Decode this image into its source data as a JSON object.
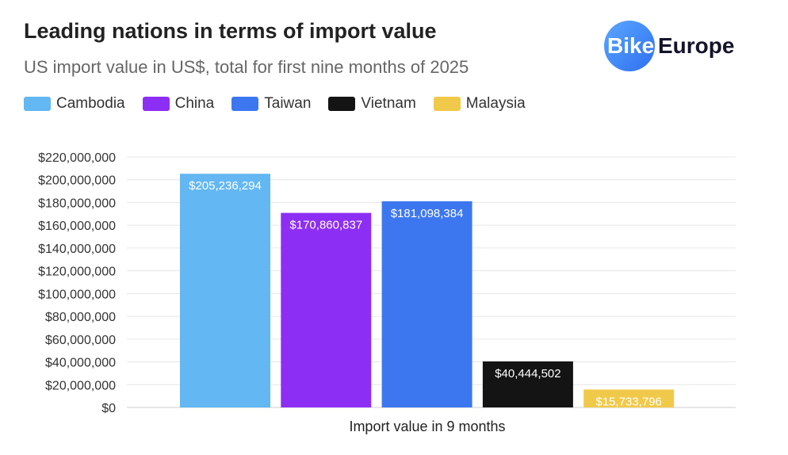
{
  "chart_data": {
    "type": "bar",
    "title": "Leading nations in terms of import value",
    "subtitle": "US import value in US$, total for first nine months of 2025",
    "xlabel": "Import value in 9 months",
    "ylabel": "",
    "ylim": [
      0,
      220000000
    ],
    "yticks": [
      "$0",
      "$20,000,000",
      "$40,000,000",
      "$60,000,000",
      "$80,000,000",
      "$100,000,000",
      "$120,000,000",
      "$140,000,000",
      "$160,000,000",
      "$180,000,000",
      "$200,000,000",
      "$220,000,000"
    ],
    "grid": true,
    "legend_position": "top-left",
    "series": [
      {
        "name": "Cambodia",
        "values": [
          205236294
        ],
        "label": "$205,236,294",
        "color": "#63b7f2"
      },
      {
        "name": "China",
        "values": [
          170860837
        ],
        "label": "$170,860,837",
        "color": "#8d2ef5"
      },
      {
        "name": "Taiwan",
        "values": [
          181098384
        ],
        "label": "$181,098,384",
        "color": "#3d77f0"
      },
      {
        "name": "Vietnam",
        "values": [
          40444502
        ],
        "label": "$40,444,502",
        "color": "#141414"
      },
      {
        "name": "Malaysia",
        "values": [
          15733796
        ],
        "label": "$15,733,796",
        "color": "#f1c94a"
      }
    ]
  },
  "logo": {
    "part1": "Bike",
    "part2": "Europe"
  }
}
